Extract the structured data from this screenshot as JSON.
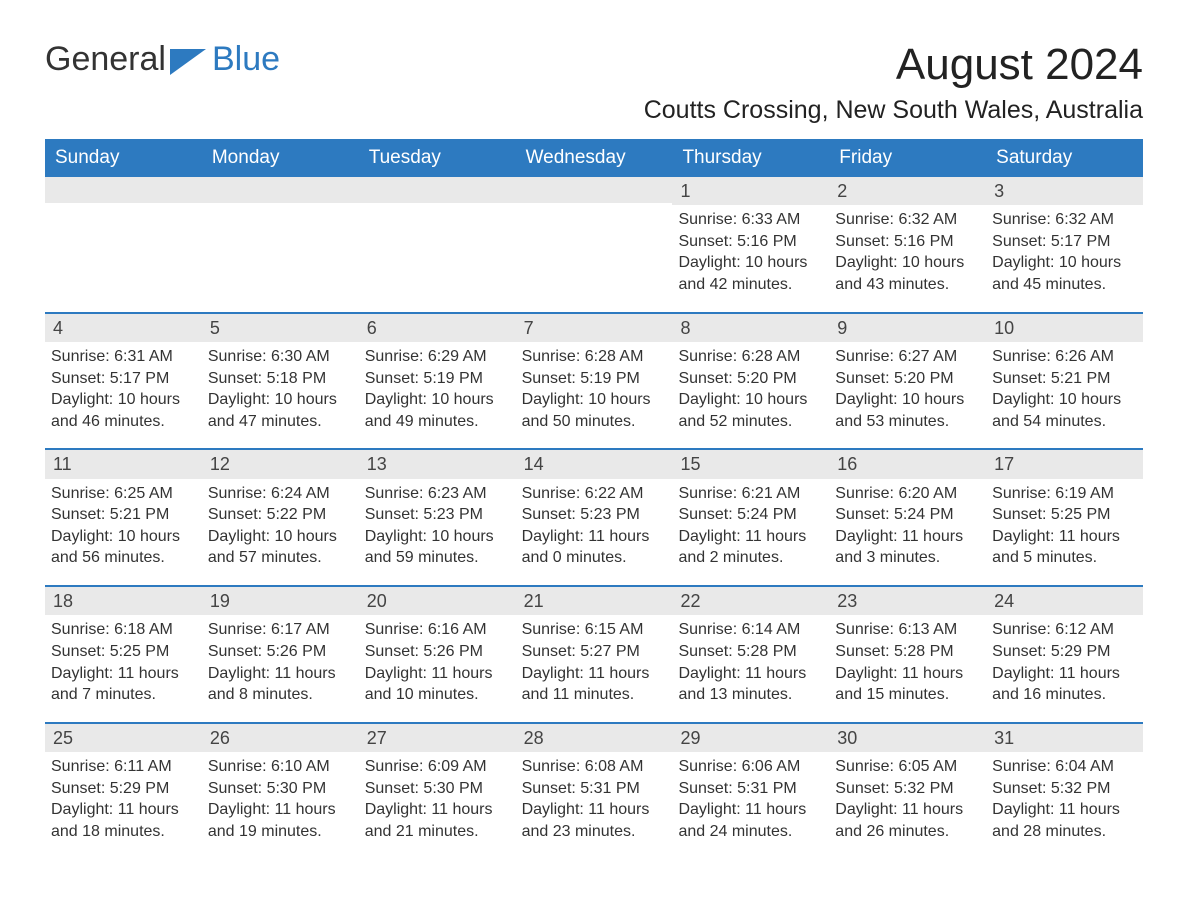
{
  "brand": {
    "part1": "General",
    "part2": "Blue"
  },
  "title": "August 2024",
  "location": "Coutts Crossing, New South Wales, Australia",
  "colors": {
    "header_bg": "#2d7ac0",
    "header_text": "#ffffff",
    "daynum_bg": "#e9e9e9",
    "border": "#2d7ac0",
    "body_text": "#333333",
    "page_bg": "#ffffff"
  },
  "typography": {
    "title_fontsize": 44,
    "location_fontsize": 25,
    "header_fontsize": 19,
    "cell_fontsize": 16,
    "logo_fontsize": 34
  },
  "layout": {
    "columns": 7,
    "rows": 5,
    "week_start": "Sunday"
  },
  "day_names": [
    "Sunday",
    "Monday",
    "Tuesday",
    "Wednesday",
    "Thursday",
    "Friday",
    "Saturday"
  ],
  "weeks": [
    [
      {
        "day": "",
        "sunrise": "",
        "sunset": "",
        "daylight": ""
      },
      {
        "day": "",
        "sunrise": "",
        "sunset": "",
        "daylight": ""
      },
      {
        "day": "",
        "sunrise": "",
        "sunset": "",
        "daylight": ""
      },
      {
        "day": "",
        "sunrise": "",
        "sunset": "",
        "daylight": ""
      },
      {
        "day": "1",
        "sunrise": "Sunrise: 6:33 AM",
        "sunset": "Sunset: 5:16 PM",
        "daylight": "Daylight: 10 hours and 42 minutes."
      },
      {
        "day": "2",
        "sunrise": "Sunrise: 6:32 AM",
        "sunset": "Sunset: 5:16 PM",
        "daylight": "Daylight: 10 hours and 43 minutes."
      },
      {
        "day": "3",
        "sunrise": "Sunrise: 6:32 AM",
        "sunset": "Sunset: 5:17 PM",
        "daylight": "Daylight: 10 hours and 45 minutes."
      }
    ],
    [
      {
        "day": "4",
        "sunrise": "Sunrise: 6:31 AM",
        "sunset": "Sunset: 5:17 PM",
        "daylight": "Daylight: 10 hours and 46 minutes."
      },
      {
        "day": "5",
        "sunrise": "Sunrise: 6:30 AM",
        "sunset": "Sunset: 5:18 PM",
        "daylight": "Daylight: 10 hours and 47 minutes."
      },
      {
        "day": "6",
        "sunrise": "Sunrise: 6:29 AM",
        "sunset": "Sunset: 5:19 PM",
        "daylight": "Daylight: 10 hours and 49 minutes."
      },
      {
        "day": "7",
        "sunrise": "Sunrise: 6:28 AM",
        "sunset": "Sunset: 5:19 PM",
        "daylight": "Daylight: 10 hours and 50 minutes."
      },
      {
        "day": "8",
        "sunrise": "Sunrise: 6:28 AM",
        "sunset": "Sunset: 5:20 PM",
        "daylight": "Daylight: 10 hours and 52 minutes."
      },
      {
        "day": "9",
        "sunrise": "Sunrise: 6:27 AM",
        "sunset": "Sunset: 5:20 PM",
        "daylight": "Daylight: 10 hours and 53 minutes."
      },
      {
        "day": "10",
        "sunrise": "Sunrise: 6:26 AM",
        "sunset": "Sunset: 5:21 PM",
        "daylight": "Daylight: 10 hours and 54 minutes."
      }
    ],
    [
      {
        "day": "11",
        "sunrise": "Sunrise: 6:25 AM",
        "sunset": "Sunset: 5:21 PM",
        "daylight": "Daylight: 10 hours and 56 minutes."
      },
      {
        "day": "12",
        "sunrise": "Sunrise: 6:24 AM",
        "sunset": "Sunset: 5:22 PM",
        "daylight": "Daylight: 10 hours and 57 minutes."
      },
      {
        "day": "13",
        "sunrise": "Sunrise: 6:23 AM",
        "sunset": "Sunset: 5:23 PM",
        "daylight": "Daylight: 10 hours and 59 minutes."
      },
      {
        "day": "14",
        "sunrise": "Sunrise: 6:22 AM",
        "sunset": "Sunset: 5:23 PM",
        "daylight": "Daylight: 11 hours and 0 minutes."
      },
      {
        "day": "15",
        "sunrise": "Sunrise: 6:21 AM",
        "sunset": "Sunset: 5:24 PM",
        "daylight": "Daylight: 11 hours and 2 minutes."
      },
      {
        "day": "16",
        "sunrise": "Sunrise: 6:20 AM",
        "sunset": "Sunset: 5:24 PM",
        "daylight": "Daylight: 11 hours and 3 minutes."
      },
      {
        "day": "17",
        "sunrise": "Sunrise: 6:19 AM",
        "sunset": "Sunset: 5:25 PM",
        "daylight": "Daylight: 11 hours and 5 minutes."
      }
    ],
    [
      {
        "day": "18",
        "sunrise": "Sunrise: 6:18 AM",
        "sunset": "Sunset: 5:25 PM",
        "daylight": "Daylight: 11 hours and 7 minutes."
      },
      {
        "day": "19",
        "sunrise": "Sunrise: 6:17 AM",
        "sunset": "Sunset: 5:26 PM",
        "daylight": "Daylight: 11 hours and 8 minutes."
      },
      {
        "day": "20",
        "sunrise": "Sunrise: 6:16 AM",
        "sunset": "Sunset: 5:26 PM",
        "daylight": "Daylight: 11 hours and 10 minutes."
      },
      {
        "day": "21",
        "sunrise": "Sunrise: 6:15 AM",
        "sunset": "Sunset: 5:27 PM",
        "daylight": "Daylight: 11 hours and 11 minutes."
      },
      {
        "day": "22",
        "sunrise": "Sunrise: 6:14 AM",
        "sunset": "Sunset: 5:28 PM",
        "daylight": "Daylight: 11 hours and 13 minutes."
      },
      {
        "day": "23",
        "sunrise": "Sunrise: 6:13 AM",
        "sunset": "Sunset: 5:28 PM",
        "daylight": "Daylight: 11 hours and 15 minutes."
      },
      {
        "day": "24",
        "sunrise": "Sunrise: 6:12 AM",
        "sunset": "Sunset: 5:29 PM",
        "daylight": "Daylight: 11 hours and 16 minutes."
      }
    ],
    [
      {
        "day": "25",
        "sunrise": "Sunrise: 6:11 AM",
        "sunset": "Sunset: 5:29 PM",
        "daylight": "Daylight: 11 hours and 18 minutes."
      },
      {
        "day": "26",
        "sunrise": "Sunrise: 6:10 AM",
        "sunset": "Sunset: 5:30 PM",
        "daylight": "Daylight: 11 hours and 19 minutes."
      },
      {
        "day": "27",
        "sunrise": "Sunrise: 6:09 AM",
        "sunset": "Sunset: 5:30 PM",
        "daylight": "Daylight: 11 hours and 21 minutes."
      },
      {
        "day": "28",
        "sunrise": "Sunrise: 6:08 AM",
        "sunset": "Sunset: 5:31 PM",
        "daylight": "Daylight: 11 hours and 23 minutes."
      },
      {
        "day": "29",
        "sunrise": "Sunrise: 6:06 AM",
        "sunset": "Sunset: 5:31 PM",
        "daylight": "Daylight: 11 hours and 24 minutes."
      },
      {
        "day": "30",
        "sunrise": "Sunrise: 6:05 AM",
        "sunset": "Sunset: 5:32 PM",
        "daylight": "Daylight: 11 hours and 26 minutes."
      },
      {
        "day": "31",
        "sunrise": "Sunrise: 6:04 AM",
        "sunset": "Sunset: 5:32 PM",
        "daylight": "Daylight: 11 hours and 28 minutes."
      }
    ]
  ]
}
